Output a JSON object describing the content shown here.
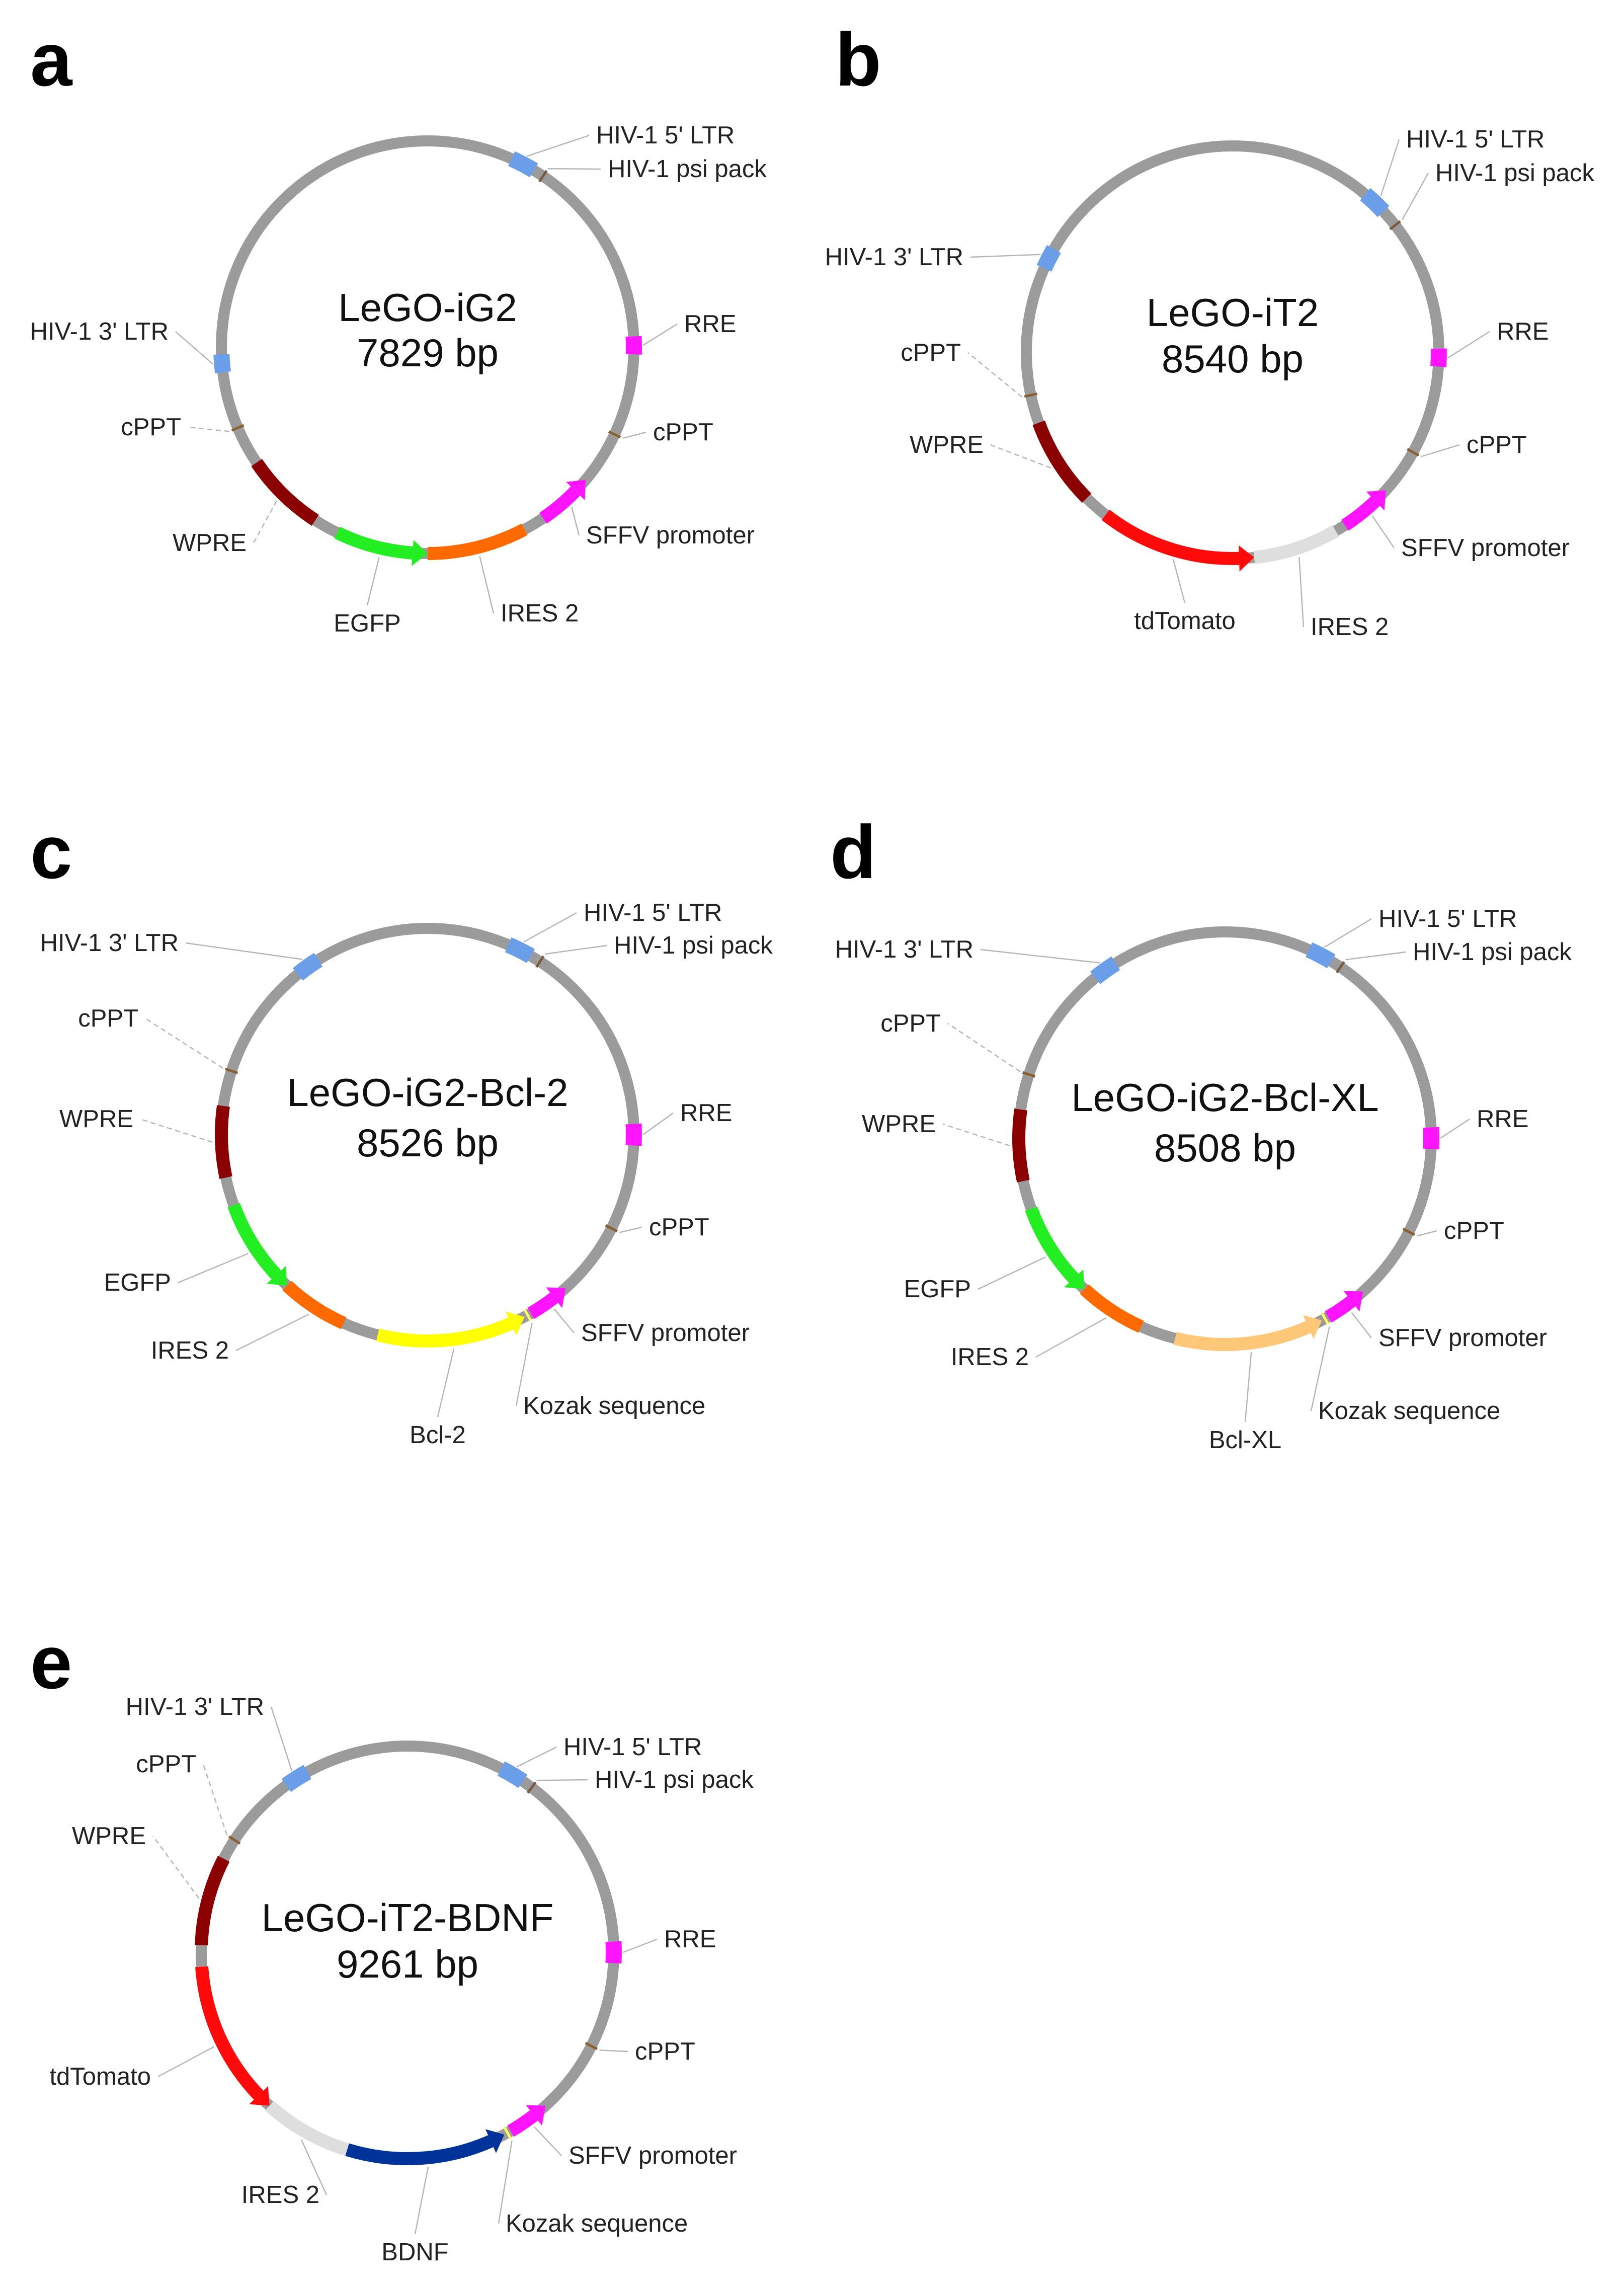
{
  "figure": {
    "panels": [
      {
        "letter": "a",
        "name": "LeGO-iG2",
        "size": "7829 bp",
        "features": [
          {
            "label": "HIV-1 5' LTR",
            "type": "block",
            "color": "#6a9ee8",
            "start": 24,
            "end": 31
          },
          {
            "label": "HIV-1 psi pack",
            "type": "tick",
            "color": "#7a5a40",
            "at": 34
          },
          {
            "label": "RRE",
            "type": "block",
            "color": "#ff14ff",
            "start": 87,
            "end": 92
          },
          {
            "label": "cPPT",
            "type": "tick",
            "color": "#8a6030",
            "at": 115
          },
          {
            "label": "SFFV promoter",
            "type": "arrow",
            "color": "#ff14ff",
            "start": 130,
            "end": 146,
            "dir": "ccw"
          },
          {
            "label": "IRES 2",
            "type": "arc",
            "color": "#ff6a00",
            "start": 152,
            "end": 180
          },
          {
            "label": "EGFP",
            "type": "arrow",
            "color": "#22ee22",
            "start": 180,
            "end": 206,
            "dir": "ccw"
          },
          {
            "label": "WPRE",
            "type": "arc",
            "color": "#8b0000",
            "start": 213,
            "end": 236
          },
          {
            "label": "cPPT",
            "type": "tick",
            "color": "#8a6030",
            "at": 247
          },
          {
            "label": "HIV-1 3' LTR",
            "type": "block",
            "color": "#6a9ee8",
            "start": 263,
            "end": 268
          }
        ]
      },
      {
        "letter": "b",
        "name": "LeGO-iT2",
        "size": "8540 bp",
        "features": [
          {
            "label": "HIV-1 5' LTR",
            "type": "block",
            "color": "#6a9ee8",
            "start": 40,
            "end": 47
          },
          {
            "label": "HIV-1 psi pack",
            "type": "tick",
            "color": "#7a5a40",
            "at": 52
          },
          {
            "label": "RRE",
            "type": "block",
            "color": "#ff14ff",
            "start": 89,
            "end": 94
          },
          {
            "label": "cPPT",
            "type": "tick",
            "color": "#8a6030",
            "at": 119
          },
          {
            "label": "SFFV promoter",
            "type": "arrow",
            "color": "#ff14ff",
            "start": 132,
            "end": 147,
            "dir": "ccw"
          },
          {
            "label": "IRES 2",
            "type": "arc",
            "color": "#dedede",
            "start": 150,
            "end": 174
          },
          {
            "label": "tdTomato",
            "type": "arrow",
            "color": "#ff0a0a",
            "start": 174,
            "end": 218,
            "dir": "ccw"
          },
          {
            "label": "WPRE",
            "type": "arc",
            "color": "#8b0000",
            "start": 225,
            "end": 250
          },
          {
            "label": "cPPT",
            "type": "tick",
            "color": "#8a6030",
            "at": 258
          },
          {
            "label": "HIV-1 3' LTR",
            "type": "block",
            "color": "#6a9ee8",
            "start": 294,
            "end": 300
          }
        ]
      },
      {
        "letter": "c",
        "name": "LeGO-iG2-Bcl-2",
        "size": "8526 bp",
        "features": [
          {
            "label": "HIV-1 5' LTR",
            "type": "block",
            "color": "#6a9ee8",
            "start": 23,
            "end": 30
          },
          {
            "label": "HIV-1 psi pack",
            "type": "tick",
            "color": "#7a5a40",
            "at": 33
          },
          {
            "label": "RRE",
            "type": "block",
            "color": "#ff14ff",
            "start": 87,
            "end": 93
          },
          {
            "label": "cPPT",
            "type": "tick",
            "color": "#8a6030",
            "at": 117
          },
          {
            "label": "SFFV promoter",
            "type": "arrow",
            "color": "#ff14ff",
            "start": 138,
            "end": 150,
            "dir": "ccw"
          },
          {
            "label": "Kozak sequence",
            "type": "tick",
            "color": "#ffff60",
            "at": 151
          },
          {
            "label": "Bcl-2",
            "type": "arrow",
            "color": "#ffff00",
            "start": 152,
            "end": 194,
            "dir": "ccw"
          },
          {
            "label": "IRES 2",
            "type": "arc",
            "color": "#ff6a00",
            "start": 204,
            "end": 223
          },
          {
            "label": "EGFP",
            "type": "arrow",
            "color": "#22ee22",
            "start": 223,
            "end": 250,
            "dir": "ccw"
          },
          {
            "label": "WPRE",
            "type": "arc",
            "color": "#8b0000",
            "start": 258,
            "end": 278
          },
          {
            "label": "cPPT",
            "type": "tick",
            "color": "#8a6030",
            "at": 288
          },
          {
            "label": "HIV-1 3' LTR",
            "type": "block",
            "color": "#6a9ee8",
            "start": 321,
            "end": 328
          }
        ]
      },
      {
        "letter": "d",
        "name": "LeGO-iG2-Bcl-XL",
        "size": "8508 bp",
        "features": [
          {
            "label": "HIV-1 5' LTR",
            "type": "block",
            "color": "#6a9ee8",
            "start": 24,
            "end": 31
          },
          {
            "label": "HIV-1 psi pack",
            "type": "tick",
            "color": "#7a5a40",
            "at": 34
          },
          {
            "label": "RRE",
            "type": "block",
            "color": "#ff14ff",
            "start": 87,
            "end": 93
          },
          {
            "label": "cPPT",
            "type": "tick",
            "color": "#8a6030",
            "at": 117
          },
          {
            "label": "SFFV promoter",
            "type": "arrow",
            "color": "#ff14ff",
            "start": 138,
            "end": 150,
            "dir": "ccw"
          },
          {
            "label": "Kozak sequence",
            "type": "tick",
            "color": "#ffff60",
            "at": 151
          },
          {
            "label": "Bcl-XL",
            "type": "arrow",
            "color": "#ffc878",
            "start": 152,
            "end": 194,
            "dir": "ccw"
          },
          {
            "label": "IRES 2",
            "type": "arc",
            "color": "#ff6a00",
            "start": 204,
            "end": 223
          },
          {
            "label": "EGFP",
            "type": "arrow",
            "color": "#22ee22",
            "start": 223,
            "end": 250,
            "dir": "ccw"
          },
          {
            "label": "WPRE",
            "type": "arc",
            "color": "#8b0000",
            "start": 258,
            "end": 278
          },
          {
            "label": "cPPT",
            "type": "tick",
            "color": "#8a6030",
            "at": 288
          },
          {
            "label": "HIV-1 3' LTR",
            "type": "block",
            "color": "#6a9ee8",
            "start": 321,
            "end": 328
          }
        ]
      },
      {
        "letter": "e",
        "name": "LeGO-iT2-BDNF",
        "size": "9261 bp",
        "features": [
          {
            "label": "HIV-1 5' LTR",
            "type": "block",
            "color": "#6a9ee8",
            "start": 27,
            "end": 34
          },
          {
            "label": "HIV-1 psi pack",
            "type": "tick",
            "color": "#7a5a40",
            "at": 37
          },
          {
            "label": "RRE",
            "type": "block",
            "color": "#ff14ff",
            "start": 87,
            "end": 93
          },
          {
            "label": "cPPT",
            "type": "tick",
            "color": "#8a6030",
            "at": 117
          },
          {
            "label": "SFFV promoter",
            "type": "arrow",
            "color": "#ff14ff",
            "start": 138,
            "end": 150,
            "dir": "ccw"
          },
          {
            "label": "Kozak sequence",
            "type": "tick",
            "color": "#ffff60",
            "at": 151
          },
          {
            "label": "BDNF",
            "type": "arrow",
            "color": "#003399",
            "start": 152,
            "end": 197,
            "dir": "ccw"
          },
          {
            "label": "IRES 2",
            "type": "arc",
            "color": "#dedede",
            "start": 197,
            "end": 222
          },
          {
            "label": "tdTomato",
            "type": "arrow",
            "color": "#ff0a0a",
            "start": 222,
            "end": 266,
            "dir": "ccw"
          },
          {
            "label": "WPRE",
            "type": "arc",
            "color": "#8b0000",
            "start": 272,
            "end": 297
          },
          {
            "label": "cPPT",
            "type": "tick",
            "color": "#8a6030",
            "at": 303
          },
          {
            "label": "HIV-1 3' LTR",
            "type": "block",
            "color": "#6a9ee8",
            "start": 324,
            "end": 331
          }
        ]
      }
    ],
    "colors": {
      "backbone": "#9b9b9b",
      "leader": "#b4b4b4",
      "text": "#222222"
    }
  }
}
